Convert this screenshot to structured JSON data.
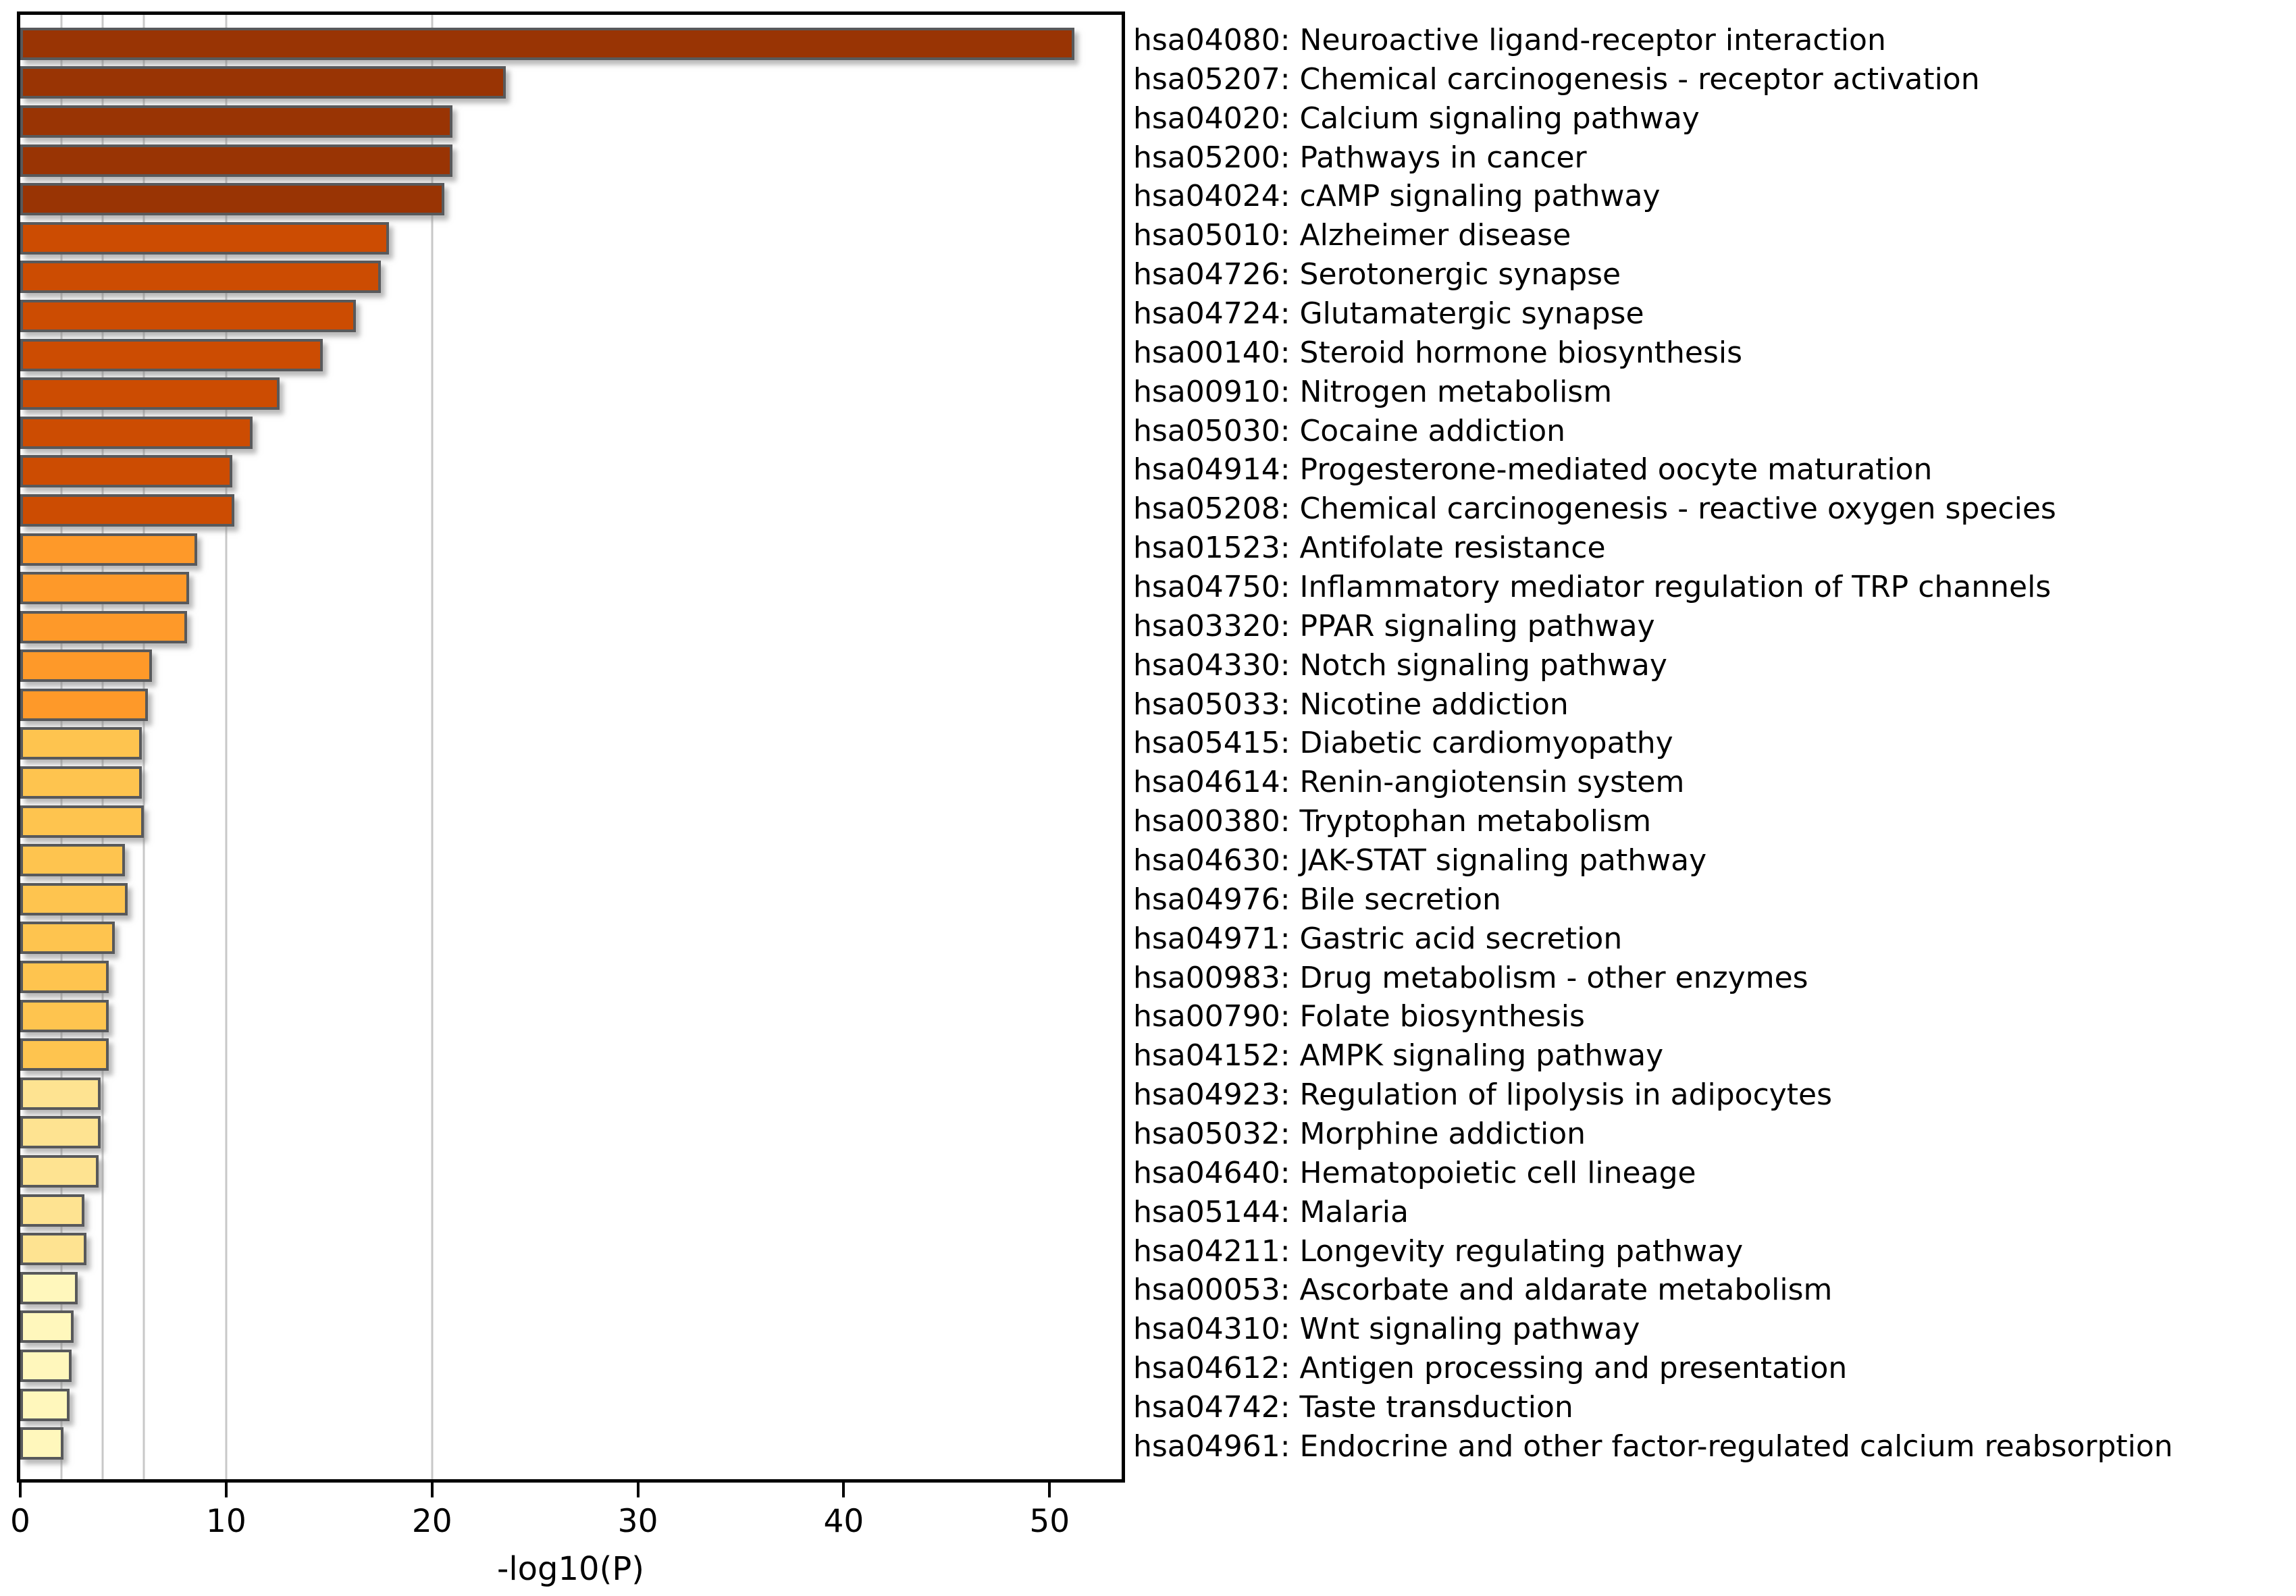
{
  "chart_data": {
    "type": "bar",
    "orientation": "horizontal",
    "title": "",
    "xlabel": "-log10(P)",
    "xlim": [
      0,
      53.5
    ],
    "xticks": [
      0,
      10,
      20,
      30,
      40,
      50
    ],
    "xtick_labels": [
      "0",
      "10",
      "20",
      "30",
      "40",
      "50"
    ],
    "gridlines_x": [
      2,
      4,
      6,
      10,
      20
    ],
    "grid": "vertical-threshold-lines-only",
    "legend": "none",
    "bars": [
      {
        "label": "hsa04080: Neuroactive ligand-receptor interaction",
        "value": 51.2,
        "color": "#993404"
      },
      {
        "label": "hsa05207: Chemical carcinogenesis - receptor activation",
        "value": 23.6,
        "color": "#993404"
      },
      {
        "label": "hsa04020: Calcium signaling pathway",
        "value": 21.0,
        "color": "#993404"
      },
      {
        "label": "hsa05200: Pathways in cancer",
        "value": 21.0,
        "color": "#993404"
      },
      {
        "label": "hsa04024: cAMP signaling pathway",
        "value": 20.6,
        "color": "#993404"
      },
      {
        "label": "hsa05010: Alzheimer disease",
        "value": 17.9,
        "color": "#cc4c02"
      },
      {
        "label": "hsa04726: Serotonergic synapse",
        "value": 17.5,
        "color": "#cc4c02"
      },
      {
        "label": "hsa04724: Glutamatergic synapse",
        "value": 16.3,
        "color": "#cc4c02"
      },
      {
        "label": "hsa00140: Steroid hormone biosynthesis",
        "value": 14.7,
        "color": "#cc4c02"
      },
      {
        "label": "hsa00910: Nitrogen metabolism",
        "value": 12.6,
        "color": "#cc4c02"
      },
      {
        "label": "hsa05030: Cocaine addiction",
        "value": 11.3,
        "color": "#cc4c02"
      },
      {
        "label": "hsa04914: Progesterone-mediated oocyte maturation",
        "value": 10.3,
        "color": "#cc4c02"
      },
      {
        "label": "hsa05208: Chemical carcinogenesis - reactive oxygen species",
        "value": 10.4,
        "color": "#cc4c02"
      },
      {
        "label": "hsa01523: Antifolate resistance",
        "value": 8.6,
        "color": "#fe9929"
      },
      {
        "label": "hsa04750: Inflammatory mediator regulation of TRP channels",
        "value": 8.2,
        "color": "#fe9929"
      },
      {
        "label": "hsa03320: PPAR signaling pathway",
        "value": 8.1,
        "color": "#fe9929"
      },
      {
        "label": "hsa04330: Notch signaling pathway",
        "value": 6.4,
        "color": "#fe9929"
      },
      {
        "label": "hsa05033: Nicotine addiction",
        "value": 6.2,
        "color": "#fe9929"
      },
      {
        "label": "hsa05415: Diabetic cardiomyopathy",
        "value": 5.9,
        "color": "#fec44f"
      },
      {
        "label": "hsa04614: Renin-angiotensin system",
        "value": 5.9,
        "color": "#fec44f"
      },
      {
        "label": "hsa00380: Tryptophan metabolism",
        "value": 6.0,
        "color": "#fec44f"
      },
      {
        "label": "hsa04630: JAK-STAT signaling pathway",
        "value": 5.1,
        "color": "#fec44f"
      },
      {
        "label": "hsa04976: Bile secretion",
        "value": 5.2,
        "color": "#fec44f"
      },
      {
        "label": "hsa04971: Gastric acid secretion",
        "value": 4.6,
        "color": "#fec44f"
      },
      {
        "label": "hsa00983: Drug metabolism - other enzymes",
        "value": 4.3,
        "color": "#fec44f"
      },
      {
        "label": "hsa00790: Folate biosynthesis",
        "value": 4.3,
        "color": "#fec44f"
      },
      {
        "label": "hsa04152: AMPK signaling pathway",
        "value": 4.3,
        "color": "#fec44f"
      },
      {
        "label": "hsa04923: Regulation of lipolysis in adipocytes",
        "value": 3.9,
        "color": "#fee391"
      },
      {
        "label": "hsa05032: Morphine addiction",
        "value": 3.9,
        "color": "#fee391"
      },
      {
        "label": "hsa04640: Hematopoietic cell lineage",
        "value": 3.8,
        "color": "#fee391"
      },
      {
        "label": "hsa05144: Malaria",
        "value": 3.1,
        "color": "#fee391"
      },
      {
        "label": "hsa04211: Longevity regulating pathway",
        "value": 3.2,
        "color": "#fee391"
      },
      {
        "label": "hsa00053: Ascorbate and aldarate metabolism",
        "value": 2.8,
        "color": "#fff7bc"
      },
      {
        "label": "hsa04310: Wnt signaling pathway",
        "value": 2.6,
        "color": "#fff7bc"
      },
      {
        "label": "hsa04612: Antigen processing and presentation",
        "value": 2.5,
        "color": "#fff7bc"
      },
      {
        "label": "hsa04742: Taste transduction",
        "value": 2.4,
        "color": "#fff7bc"
      },
      {
        "label": "hsa04961: Endocrine and other factor-regulated calcium reabsorption",
        "value": 2.1,
        "color": "#fff7bc"
      }
    ],
    "color_bins": [
      {
        "range": "-log10(P) > 20",
        "color": "#993404"
      },
      {
        "range": "10 - 20",
        "color": "#cc4c02"
      },
      {
        "range": "6 - 10",
        "color": "#fe9929"
      },
      {
        "range": "4 - 6",
        "color": "#fec44f"
      },
      {
        "range": "3 - 4",
        "color": "#fee391"
      },
      {
        "range": "2 - 3",
        "color": "#fff7bc"
      }
    ]
  },
  "style": {
    "background_color": "#ffffff",
    "axis_color": "#000000",
    "gridline_color": "#c8c8c8",
    "bar_edge_color": "#58595b",
    "text_color": "#000000"
  }
}
